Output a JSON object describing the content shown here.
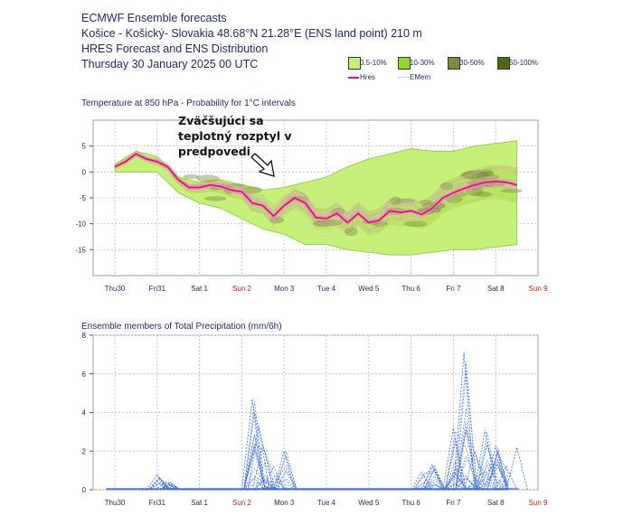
{
  "header": {
    "line1": "ECMWF Ensemble forecasts",
    "line2": "Košice - Košický- Slovakia 48.68°N 21.28°E (ENS land point) 210 m",
    "line3": "HRES Forecast and ENS Distribution",
    "line4": "Thursday 30 January 2025 00 UTC"
  },
  "legend": {
    "bands": [
      {
        "label": "0.5-10%",
        "color": "#c6f07a"
      },
      {
        "label": "10-30%",
        "color": "#9ad62a"
      },
      {
        "label": "30-50%",
        "color": "#7e8a3e"
      },
      {
        "label": "50-100%",
        "color": "#4f6a12"
      }
    ],
    "hres_label": "Hres",
    "hres_color": "#d6187f",
    "emem_label": "EMem",
    "emem_color": "#d9a0c0"
  },
  "annotation": {
    "text": "Zväčšujúci sa\nteplotný rozptyl v\npredpovedi"
  },
  "chart_data": [
    {
      "type": "area",
      "title": "Temperature at 850 hPa - Probability for 1°C intervals",
      "ylim": [
        -20,
        10
      ],
      "yticks": [
        5,
        0,
        -5,
        -10,
        -15
      ],
      "categories": [
        "Thu30",
        "Fri31",
        "Sat 1",
        "Sun 2",
        "Mon 3",
        "Tue 4",
        "Wed 5",
        "Thu 6",
        "Fri 7",
        "Sat 8",
        "Sun 9"
      ],
      "weekend_categories": [
        "Sun 2",
        "Sun 9"
      ],
      "grid": true,
      "hres": {
        "name": "Hres",
        "x_days": [
          0.0,
          0.25,
          0.5,
          0.75,
          1.0,
          1.25,
          1.5,
          1.75,
          2.0,
          2.25,
          2.5,
          2.75,
          3.0,
          3.25,
          3.5,
          3.75,
          4.0,
          4.25,
          4.5,
          4.75,
          5.0,
          5.25,
          5.5,
          5.75,
          6.0,
          6.25,
          6.5,
          6.75,
          7.0,
          7.25,
          7.5,
          7.75,
          8.0,
          8.25,
          8.5,
          8.75,
          9.0,
          9.25,
          9.5
        ],
        "values": [
          1,
          2,
          3.5,
          2.5,
          2,
          1,
          -1.5,
          -3,
          -3,
          -2.5,
          -2.8,
          -3.5,
          -3.8,
          -6,
          -6.5,
          -8.5,
          -6.5,
          -5,
          -6,
          -8.8,
          -9,
          -8,
          -9.8,
          -8,
          -9.8,
          -9.3,
          -7.5,
          -7.8,
          -7.5,
          -8.2,
          -7,
          -5,
          -4,
          -3.2,
          -2.5,
          -2,
          -1.8,
          -2,
          -2.5
        ]
      },
      "ens_envelope": {
        "x_days": [
          0.0,
          0.5,
          1.0,
          1.5,
          2.0,
          2.5,
          3.0,
          3.5,
          4.0,
          4.5,
          5.0,
          5.5,
          6.0,
          6.5,
          7.0,
          7.5,
          8.0,
          8.5,
          9.0,
          9.5
        ],
        "upper": [
          1.5,
          4,
          3,
          -1,
          -2,
          -1.5,
          -2.5,
          -3.5,
          -3,
          -2,
          -1,
          1,
          2.5,
          3.5,
          4.5,
          4,
          4,
          5,
          5.5,
          6
        ],
        "lower": [
          0,
          0,
          0,
          -4,
          -6,
          -7,
          -9,
          -11,
          -12,
          -14,
          -14,
          -15,
          -15.5,
          -16,
          -16,
          -15.5,
          -15,
          -15,
          -14.5,
          -14
        ]
      }
    },
    {
      "type": "line",
      "title": "Ensemble members of Total Precipitation (mm/6h)",
      "ylim": [
        0,
        8
      ],
      "yticks": [
        8,
        6,
        4,
        2,
        0
      ],
      "categories": [
        "Thu30",
        "Fri31",
        "Sat 1",
        "Sun 2",
        "Mon 3",
        "Tue 4",
        "Wed 5",
        "Thu 6",
        "Fri 7",
        "Sat 8",
        "Sun 9"
      ],
      "weekend_categories": [
        "Sun 2",
        "Sun 9"
      ],
      "grid": true,
      "peaks": [
        {
          "x_day": 1.0,
          "value": 0.8
        },
        {
          "x_day": 1.2,
          "value": 0.4
        },
        {
          "x_day": 3.25,
          "value": 4.7
        },
        {
          "x_day": 3.4,
          "value": 3.3
        },
        {
          "x_day": 3.5,
          "value": 2.3
        },
        {
          "x_day": 3.75,
          "value": 1.2
        },
        {
          "x_day": 4.0,
          "value": 2.0
        },
        {
          "x_day": 7.25,
          "value": 0.9
        },
        {
          "x_day": 7.5,
          "value": 1.3
        },
        {
          "x_day": 8.0,
          "value": 3.2
        },
        {
          "x_day": 8.25,
          "value": 7.1
        },
        {
          "x_day": 8.5,
          "value": 2.0
        },
        {
          "x_day": 8.75,
          "value": 3.1
        },
        {
          "x_day": 9.0,
          "value": 2.3
        },
        {
          "x_day": 9.25,
          "value": 1.2
        },
        {
          "x_day": 9.5,
          "value": 2.2
        }
      ]
    }
  ]
}
